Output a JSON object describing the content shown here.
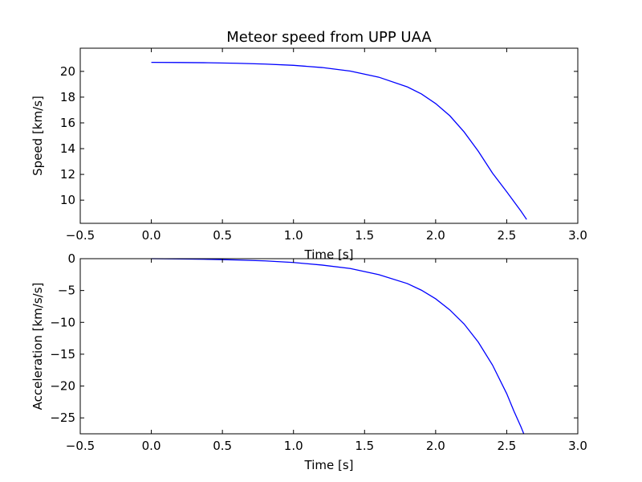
{
  "chart_data": [
    {
      "type": "line",
      "title": "Meteor speed from  UPP UAA",
      "xlabel": "Time [s]",
      "ylabel": "Speed [km/s]",
      "xlim": [
        -0.5,
        3.0
      ],
      "ylim": [
        8.2,
        21.8
      ],
      "xticks": [
        -0.5,
        0.0,
        0.5,
        1.0,
        1.5,
        2.0,
        2.5,
        3.0
      ],
      "xtick_labels": [
        "−0.5",
        "0.0",
        "0.5",
        "1.0",
        "1.5",
        "2.0",
        "2.5",
        "3.0"
      ],
      "yticks": [
        10,
        12,
        14,
        16,
        18,
        20
      ],
      "ytick_labels": [
        "10",
        "12",
        "14",
        "16",
        "18",
        "20"
      ],
      "grid": false,
      "color": "#0000ff",
      "series": [
        {
          "x": [
            0.0,
            0.2,
            0.4,
            0.6,
            0.8,
            1.0,
            1.2,
            1.4,
            1.6,
            1.8,
            1.9,
            2.0,
            2.1,
            2.2,
            2.3,
            2.4,
            2.5,
            2.55,
            2.6,
            2.64
          ],
          "y": [
            20.7,
            20.69,
            20.67,
            20.63,
            20.57,
            20.47,
            20.3,
            20.02,
            19.55,
            18.8,
            18.25,
            17.5,
            16.55,
            15.3,
            13.8,
            12.1,
            10.65,
            9.9,
            9.15,
            8.5
          ]
        }
      ]
    },
    {
      "type": "line",
      "xlabel": "Time [s]",
      "ylabel": "Acceleration [km/s/s]",
      "xlim": [
        -0.5,
        3.0
      ],
      "ylim": [
        -27.5,
        0
      ],
      "xticks": [
        -0.5,
        0.0,
        0.5,
        1.0,
        1.5,
        2.0,
        2.5,
        3.0
      ],
      "xtick_labels": [
        "−0.5",
        "0.0",
        "0.5",
        "1.0",
        "1.5",
        "2.0",
        "2.5",
        "3.0"
      ],
      "yticks": [
        0,
        -5,
        -10,
        -15,
        -20,
        -25
      ],
      "ytick_labels": [
        "0",
        "−5",
        "−10",
        "−15",
        "−20",
        "−25"
      ],
      "grid": false,
      "color": "#0000ff",
      "series": [
        {
          "x": [
            0.0,
            0.2,
            0.4,
            0.6,
            0.8,
            1.0,
            1.2,
            1.4,
            1.6,
            1.8,
            1.9,
            2.0,
            2.1,
            2.2,
            2.3,
            2.4,
            2.5,
            2.55,
            2.6,
            2.62
          ],
          "y": [
            0.0,
            -0.04,
            -0.1,
            -0.2,
            -0.35,
            -0.6,
            -1.0,
            -1.55,
            -2.5,
            -3.9,
            -4.95,
            -6.3,
            -8.05,
            -10.25,
            -13.1,
            -16.7,
            -21.2,
            -23.9,
            -26.4,
            -27.5
          ]
        }
      ]
    }
  ]
}
